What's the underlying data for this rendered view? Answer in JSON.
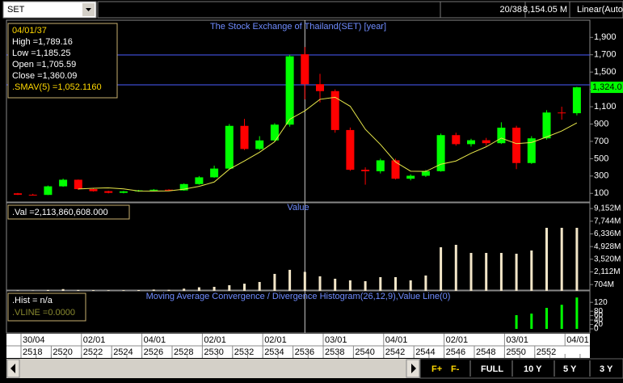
{
  "toolbar": {
    "symbol": "SET",
    "counter": "20/38",
    "value": "8,154.05 M",
    "scale": "Linear(Auto"
  },
  "buttons": [
    "F+",
    "F-",
    "FULL",
    "10 Y",
    "5 Y",
    "3 Y"
  ],
  "chart_data": [
    {
      "type": "candlestick",
      "title": "The Stock Exchange of Thailand(SET) [year]",
      "categories": [
        "2518",
        null,
        "2520",
        null,
        "2522",
        null,
        "2524",
        null,
        "2526",
        null,
        "2528",
        null,
        "2530",
        null,
        "2532",
        null,
        "2534",
        null,
        "2536",
        null,
        "2538",
        null,
        "2540",
        null,
        "2542",
        null,
        "2544",
        null,
        "2546",
        null,
        "2548",
        null,
        "2550",
        null,
        "2552",
        null,
        null,
        null
      ],
      "date_labels": [
        "30/04",
        null,
        null,
        null,
        "02/01",
        null,
        null,
        null,
        "04/01",
        null,
        null,
        null,
        "02/01",
        null,
        null,
        null,
        "02/01",
        null,
        null,
        null,
        "03/01",
        null,
        null,
        null,
        "04/01",
        null,
        null,
        null,
        "02/01",
        null,
        null,
        null,
        "03/01",
        null,
        null,
        null,
        "04/01",
        null
      ],
      "open": [
        100,
        84,
        82,
        181,
        257,
        149,
        125,
        106,
        123,
        134,
        142,
        134,
        207,
        285,
        386,
        879,
        612,
        711,
        893,
        1705.59,
        1360,
        1280,
        831,
        372,
        355,
        481,
        269,
        303,
        356,
        772,
        668,
        713,
        679,
        858,
        450,
        735,
        1033,
        1025
      ],
      "high": [
        105,
        95,
        190,
        270,
        260,
        155,
        130,
        128,
        140,
        150,
        148,
        215,
        300,
        420,
        900,
        960,
        760,
        910,
        1700,
        1789.16,
        1480,
        1300,
        860,
        400,
        500,
        500,
        320,
        370,
        790,
        800,
        730,
        740,
        920,
        880,
        760,
        1060,
        1100,
        1330
      ],
      "low": [
        80,
        75,
        80,
        175,
        140,
        120,
        100,
        100,
        118,
        130,
        130,
        130,
        200,
        280,
        380,
        600,
        600,
        700,
        870,
        1185.25,
        1150,
        800,
        360,
        200,
        330,
        260,
        250,
        290,
        350,
        650,
        640,
        650,
        670,
        380,
        440,
        720,
        950,
        1000
      ],
      "close": [
        84,
        82,
        181,
        257,
        149,
        125,
        106,
        123,
        134,
        142,
        134,
        207,
        285,
        386,
        879,
        612,
        711,
        893,
        1682,
        1360.09,
        1280,
        831,
        372,
        355,
        481,
        269,
        303,
        356,
        772,
        668,
        713,
        679,
        858,
        450,
        735,
        1033,
        1025,
        1324
      ],
      "up_color": "#00ff00",
      "down_color": "#ff0000",
      "series": [
        {
          "color": "#e8e84a",
          "values": [
            null,
            null,
            null,
            null,
            150.6,
            158.8,
            163.6,
            152,
            127.4,
            126,
            127.8,
            148,
            180.4,
            230.8,
            378.2,
            473.8,
            574.6,
            696.2,
            955.4,
            1052.116,
            1185.2,
            1209.2,
            1105,
            839.6,
            663.8,
            461.6,
            356,
            352.8,
            436.2,
            473.6,
            562.4,
            637.6,
            738,
            673.6,
            687,
            751,
            820.2,
            913.4
          ]
        }
      ],
      "ylim": [
        0,
        2080
      ],
      "yticks": [
        100,
        300,
        500,
        700,
        900,
        {
          "value": 1100,
          "label": "1,100"
        },
        {
          "value": 1300,
          "label": "1,300"
        },
        {
          "value": 1500,
          "label": "1,500"
        },
        {
          "value": 1700,
          "label": "1,700"
        },
        {
          "value": 1900,
          "label": "1,900"
        }
      ],
      "last_label": "1,324.0",
      "info": [
        "04/01/37",
        "High  =1,789.16",
        "Low   =1,185.25",
        "Open  =1,705.59",
        "Close  =1,360.09"
      ],
      "info_sma": ".SMAV(5)   =1,052.1160"
    },
    {
      "type": "bar",
      "title": "Value",
      "color": "#f3e6c8",
      "values": [
        40,
        30,
        100,
        200,
        100,
        80,
        60,
        70,
        90,
        150,
        120,
        250,
        400,
        450,
        630,
        800,
        990,
        1890,
        2340,
        2113.860608,
        1620,
        1350,
        1170,
        1080,
        1530,
        1530,
        1170,
        1710,
        4850,
        5120,
        4220,
        4220,
        4220,
        4130,
        4490,
        7010,
        7010,
        7010
      ],
      "ylim": [
        0,
        9700
      ],
      "yticks": [
        {
          "value": 704,
          "label": "704M"
        },
        {
          "value": 2112,
          "label": "2,112M"
        },
        {
          "value": 3520,
          "label": "3,520M"
        },
        {
          "value": 4928,
          "label": "4,928M"
        },
        {
          "value": 6336,
          "label": "6,336M"
        },
        {
          "value": 7744,
          "label": "7,744M"
        },
        {
          "value": 9152,
          "label": "9,152M"
        }
      ],
      "info": [
        ".Val   =2,113,860,608.000"
      ]
    },
    {
      "type": "bar",
      "title": "Moving Average Convergence / Divergence Histogram(26,12,9),Value Line(0)",
      "color": "#00ff00",
      "values": [
        null,
        null,
        null,
        null,
        null,
        null,
        null,
        null,
        null,
        null,
        null,
        null,
        null,
        null,
        null,
        null,
        null,
        null,
        null,
        null,
        null,
        null,
        null,
        null,
        null,
        null,
        null,
        null,
        null,
        null,
        null,
        null,
        null,
        62,
        69,
        95,
        109,
        142
      ],
      "ylim": [
        0,
        150
      ],
      "yticks": [
        0,
        20,
        40,
        60,
        80,
        120
      ],
      "info": [
        ".Hist   = n/a",
        ".VLINE   =0.0000"
      ]
    }
  ]
}
